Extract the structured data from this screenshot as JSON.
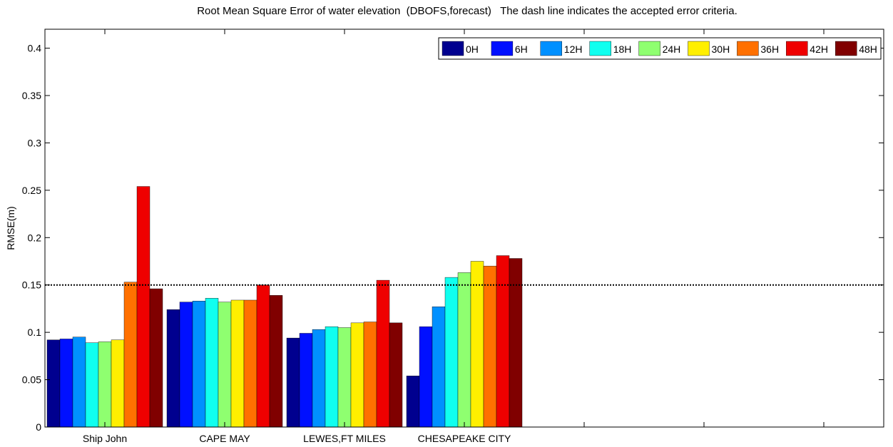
{
  "chart_data": {
    "type": "bar",
    "title": "Root Mean Square Error of water elevation  (DBOFS,forecast)   The dash line indicates the accepted error criteria.",
    "xlabel": "",
    "ylabel": "RMSE(m)",
    "ylim": [
      0,
      0.42
    ],
    "yticks": [
      "0",
      "0.05",
      "0.1",
      "0.15",
      "0.2",
      "0.25",
      "0.3",
      "0.35",
      "0.4"
    ],
    "ytick_values": [
      0,
      0.05,
      0.1,
      0.15,
      0.2,
      0.25,
      0.3,
      0.35,
      0.4
    ],
    "categories": [
      "Ship John",
      "CAPE MAY",
      "LEWES,FT MILES",
      "CHESAPEAKE CITY"
    ],
    "category_slots": 7,
    "criteria_line": 0.15,
    "legend_position": "top-right",
    "grid": false,
    "series": [
      {
        "name": "0H",
        "color": "#00008f",
        "values": [
          0.092,
          0.124,
          0.094,
          0.054
        ]
      },
      {
        "name": "6H",
        "color": "#0010ff",
        "values": [
          0.093,
          0.132,
          0.099,
          0.106
        ]
      },
      {
        "name": "12H",
        "color": "#0090ff",
        "values": [
          0.095,
          0.133,
          0.103,
          0.127
        ]
      },
      {
        "name": "18H",
        "color": "#10ffef",
        "values": [
          0.089,
          0.136,
          0.106,
          0.158
        ]
      },
      {
        "name": "24H",
        "color": "#8fff70",
        "values": [
          0.09,
          0.132,
          0.105,
          0.163
        ]
      },
      {
        "name": "30H",
        "color": "#ffef00",
        "values": [
          0.092,
          0.134,
          0.11,
          0.175
        ]
      },
      {
        "name": "36H",
        "color": "#ff7000",
        "values": [
          0.153,
          0.134,
          0.111,
          0.17
        ]
      },
      {
        "name": "42H",
        "color": "#ef0000",
        "values": [
          0.254,
          0.15,
          0.155,
          0.181
        ]
      },
      {
        "name": "48H",
        "color": "#800000",
        "values": [
          0.146,
          0.139,
          0.11,
          0.178
        ]
      }
    ]
  }
}
